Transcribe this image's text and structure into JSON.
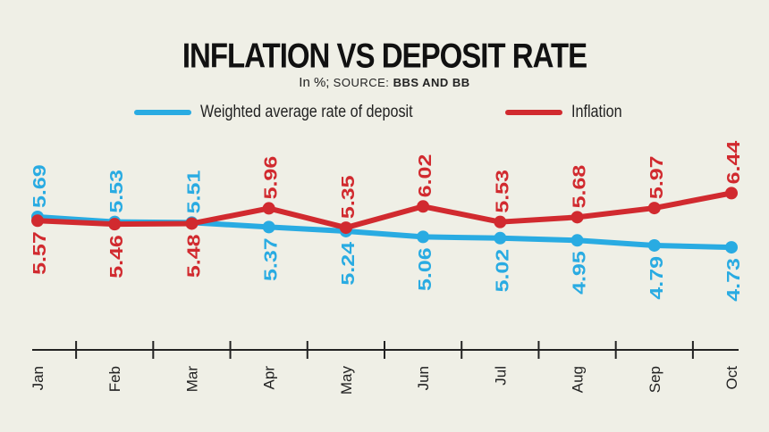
{
  "chart_data": {
    "type": "line",
    "title": "INFLATION VS DEPOSIT RATE",
    "subtitle_prefix": "In %;",
    "source_label": "SOURCE:",
    "source_value": "BBS AND BB",
    "categories": [
      "Jan",
      "Feb",
      "Mar",
      "Apr",
      "May",
      "Jun",
      "Jul",
      "Aug",
      "Sep",
      "Oct"
    ],
    "series": [
      {
        "name": "Weighted average rate of deposit",
        "color": "#29abe2",
        "values": [
          5.69,
          5.53,
          5.51,
          5.37,
          5.24,
          5.06,
          5.02,
          4.95,
          4.79,
          4.73
        ]
      },
      {
        "name": "Inflation",
        "color": "#d12a2f",
        "values": [
          5.57,
          5.46,
          5.48,
          5.96,
          5.35,
          6.02,
          5.53,
          5.68,
          5.97,
          6.44
        ]
      }
    ],
    "ylim": [
      4.0,
      7.2
    ],
    "legend_position": "top",
    "grid": false
  }
}
